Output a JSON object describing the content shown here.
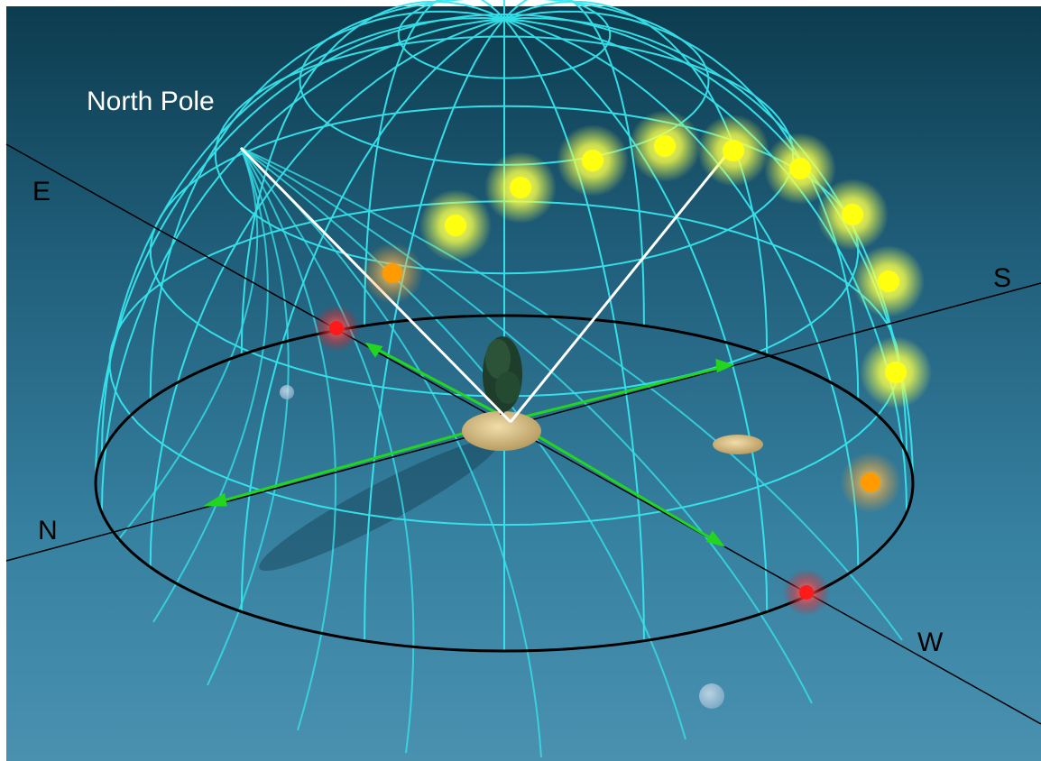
{
  "labels": {
    "north_pole": "North Pole",
    "east": "E",
    "south": "S",
    "north": "N",
    "west": "W"
  },
  "colors": {
    "sky_top": "#0d3f52",
    "sky_mid": "#2a6f8e",
    "sea": "#3d86a6",
    "grid": "#36e6ee",
    "horizon": "#000000",
    "axis": "#000000",
    "pole_lines": "#ffffff",
    "arrows": "#22d61f",
    "sun_day": "#ffff10",
    "sun_low": "#ff9a00",
    "sun_horizon": "#ff1a1a",
    "moon_pale": "#a9c6dd",
    "island": "#d9c28a",
    "tree": "#1e3d2a"
  },
  "sun_path": [
    {
      "kind": "horizon",
      "name": "sunrise"
    },
    {
      "kind": "low"
    },
    {
      "kind": "day"
    },
    {
      "kind": "day"
    },
    {
      "kind": "day"
    },
    {
      "kind": "day"
    },
    {
      "kind": "day"
    },
    {
      "kind": "day"
    },
    {
      "kind": "day"
    },
    {
      "kind": "day"
    },
    {
      "kind": "day"
    },
    {
      "kind": "low"
    },
    {
      "kind": "horizon",
      "name": "sunset"
    }
  ]
}
